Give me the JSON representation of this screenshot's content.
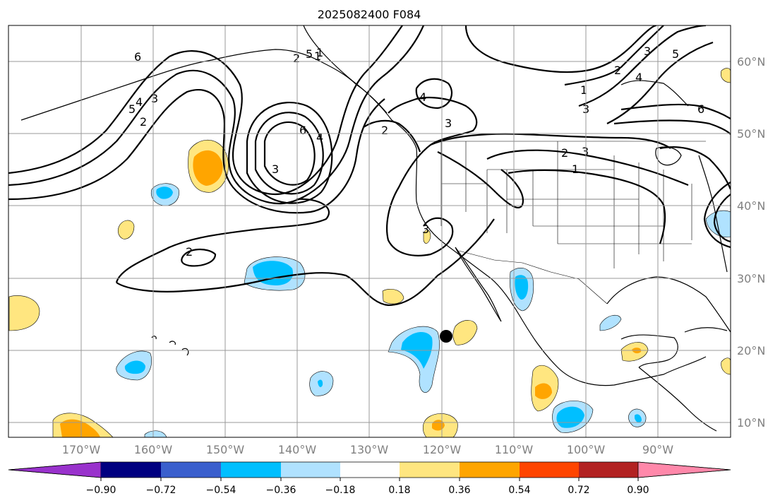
{
  "title": "2025082400 F084",
  "map": {
    "lon_labels": [
      "170°W",
      "160°W",
      "150°W",
      "140°W",
      "130°W",
      "120°W",
      "110°W",
      "100°W",
      "90°W"
    ],
    "lat_labels": [
      "60°N",
      "50°N",
      "40°N",
      "30°N",
      "20°N",
      "10°N"
    ],
    "marker": {
      "label": "point-marker",
      "lon": -119.5,
      "lat": 22
    }
  },
  "contour_labels": [
    "6",
    "5",
    "4",
    "3",
    "2",
    "1",
    "6",
    "5",
    "4",
    "3",
    "2",
    "1",
    "2",
    "3",
    "4",
    "3",
    "2",
    "1",
    "2",
    "3",
    "3",
    "1",
    "2",
    "3",
    "4",
    "5",
    "6",
    "1"
  ],
  "colorbar": {
    "ticks": [
      "−0.90",
      "−0.72",
      "−0.54",
      "−0.36",
      "−0.18",
      "0.18",
      "0.36",
      "0.54",
      "0.72",
      "0.90"
    ],
    "colors": [
      "#9932CC",
      "#000080",
      "#3A5FCD",
      "#00BFFF",
      "#B0E2FF",
      "#FFFFFF",
      "#FFE680",
      "#FFA500",
      "#FF4500",
      "#B22222",
      "#FF88AA"
    ]
  },
  "shading_colors": {
    "neg_light": "#B0E2FF",
    "neg_mid": "#00BFFF",
    "pos_light": "#FFE680",
    "pos_mid": "#FFA500"
  }
}
